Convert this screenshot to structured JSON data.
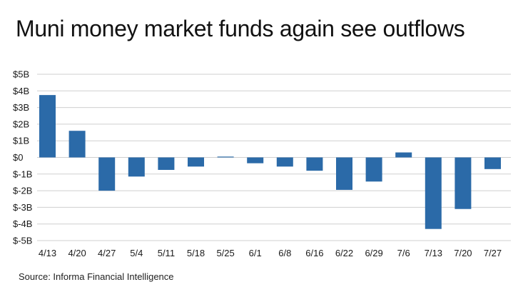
{
  "title": "Muni money market funds again see outflows",
  "source": "Source: Informa Financial Intelligence",
  "colors": {
    "bar": "#2b6aa8",
    "grid": "#cfcfcf",
    "text": "#1a1a1a"
  },
  "chart_data": {
    "type": "bar",
    "title": "Muni money market funds again see outflows",
    "xlabel": "",
    "ylabel": "",
    "units": "billions USD",
    "ylim": [
      -5,
      5
    ],
    "y_ticks": [
      5,
      4,
      3,
      2,
      1,
      0,
      -1,
      -2,
      -3,
      -4,
      -5
    ],
    "y_tick_labels": [
      "$5B",
      "$4B",
      "$3B",
      "$2B",
      "$1B",
      "$0",
      "$-1B",
      "$-2B",
      "$-3B",
      "$-4B",
      "$-5B"
    ],
    "grid": true,
    "categories": [
      "4/13",
      "4/20",
      "4/27",
      "5/4",
      "5/11",
      "5/18",
      "5/25",
      "6/1",
      "6/8",
      "6/16",
      "6/22",
      "6/29",
      "7/6",
      "7/13",
      "7/20",
      "7/27"
    ],
    "values": [
      3.75,
      1.6,
      -2.0,
      -1.15,
      -0.75,
      -0.55,
      0.05,
      -0.35,
      -0.55,
      -0.8,
      -1.95,
      -1.45,
      0.3,
      -4.3,
      -3.1,
      -0.7
    ]
  }
}
